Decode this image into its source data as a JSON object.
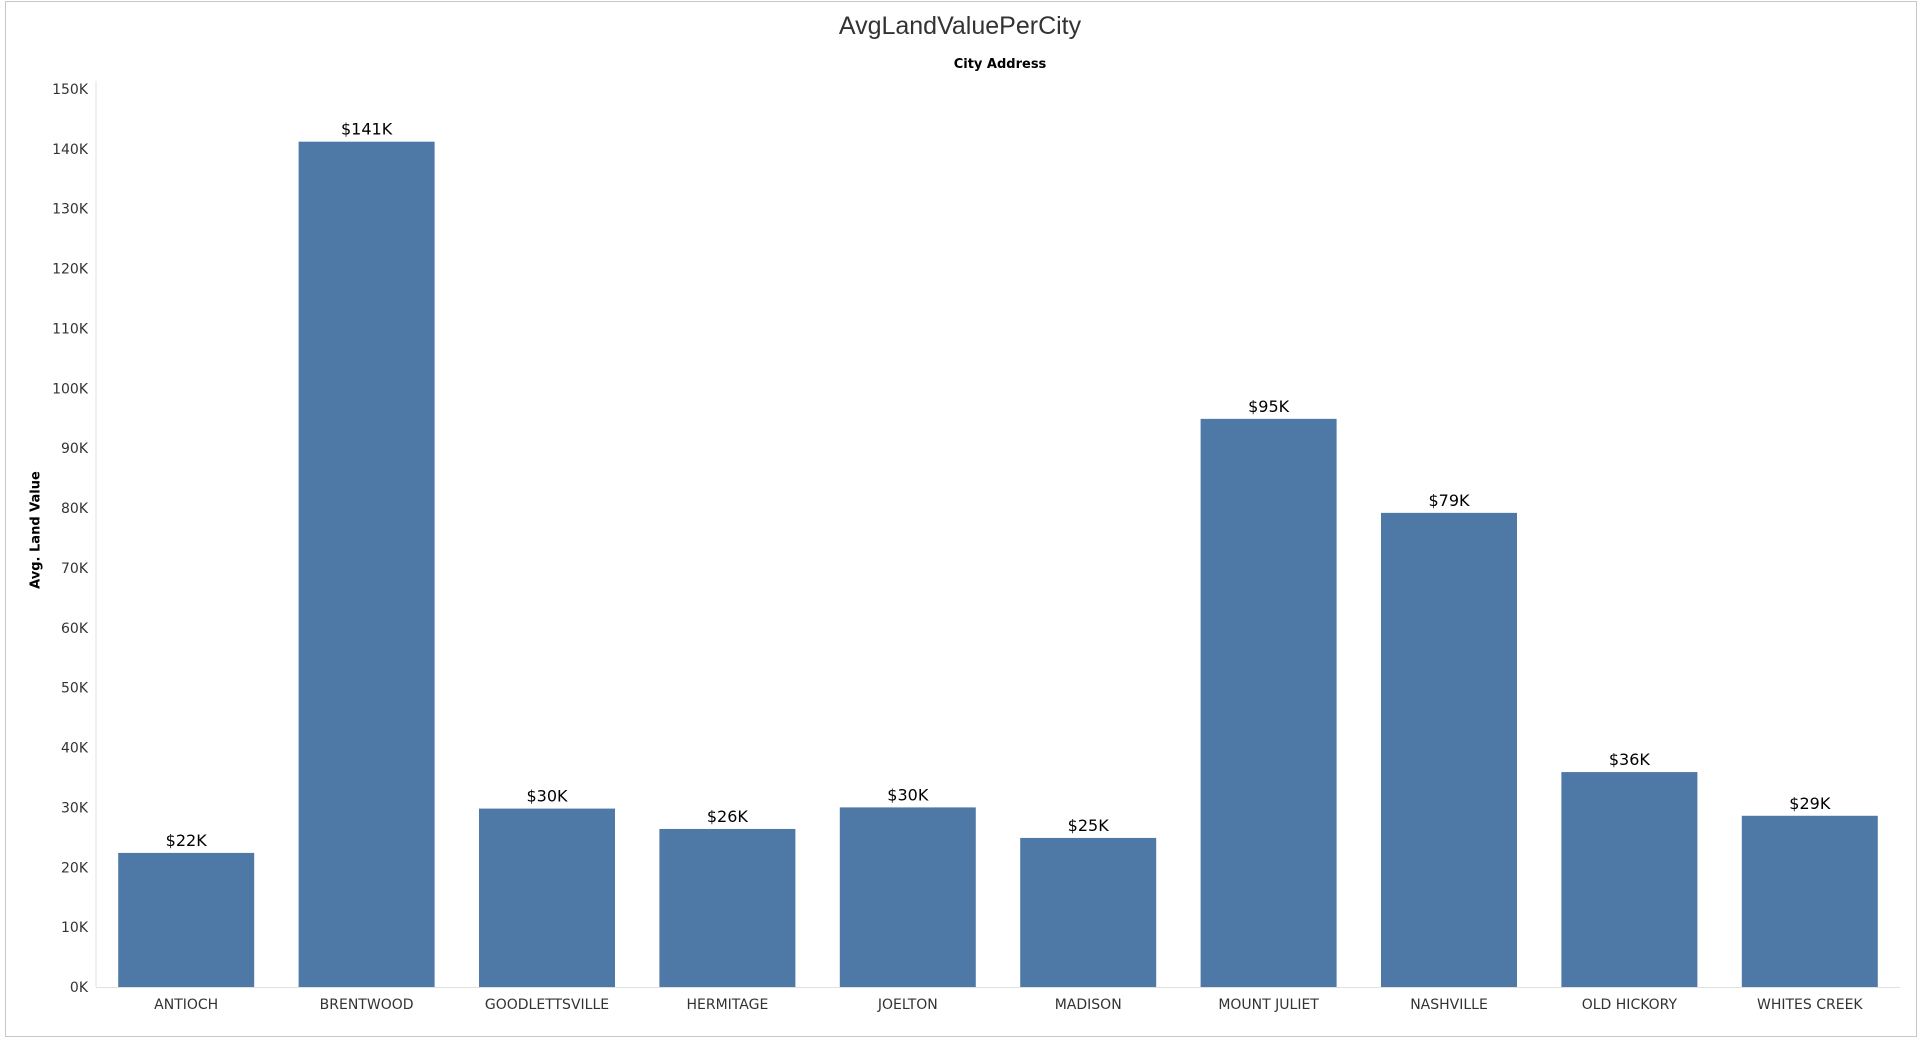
{
  "chart_data": {
    "type": "bar",
    "title": "AvgLandValuePerCity",
    "xlabel": "City Address",
    "ylabel": "Avg. Land Value",
    "categories": [
      "ANTIOCH",
      "BRENTWOOD",
      "GOODLETTSVILLE",
      "HERMITAGE",
      "JOELTON",
      "MADISON",
      "MOUNT JULIET",
      "NASHVILLE",
      "OLD HICKORY",
      "WHITES CREEK"
    ],
    "values": [
      22400,
      141200,
      29800,
      26400,
      30000,
      24900,
      94900,
      79200,
      35900,
      28600
    ],
    "data_labels": [
      "$22K",
      "$141K",
      "$30K",
      "$26K",
      "$30K",
      "$25K",
      "$95K",
      "$79K",
      "$36K",
      "$29K"
    ],
    "ylim": [
      0,
      150000
    ],
    "y_ticks": [
      0,
      10000,
      20000,
      30000,
      40000,
      50000,
      60000,
      70000,
      80000,
      90000,
      100000,
      110000,
      120000,
      130000,
      140000,
      150000
    ],
    "y_tick_labels": [
      "0K",
      "10K",
      "20K",
      "30K",
      "40K",
      "50K",
      "60K",
      "70K",
      "80K",
      "90K",
      "100K",
      "110K",
      "120K",
      "130K",
      "140K",
      "150K"
    ],
    "grid": false,
    "legend": "none",
    "bar_color": "#4e79a7",
    "axis_line_color": "#e0e0e0"
  }
}
